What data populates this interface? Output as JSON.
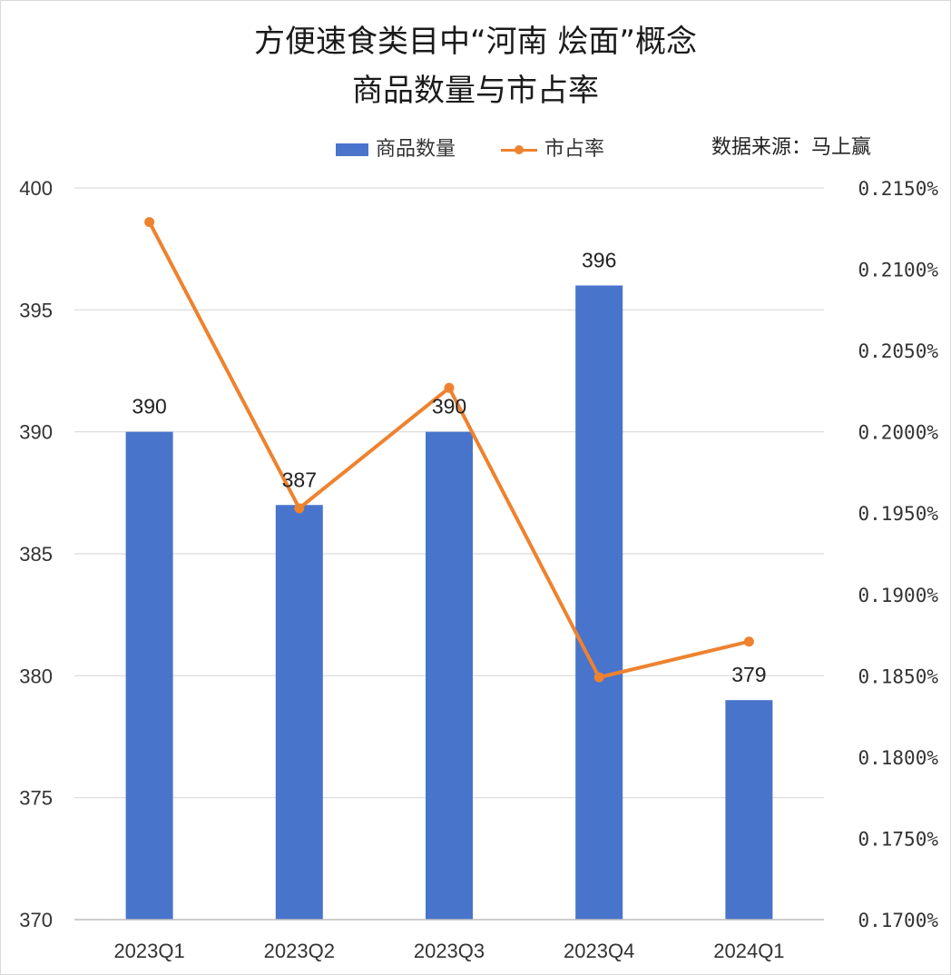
{
  "title_line1": "方便速食类目中“河南 烩面”概念",
  "title_line2": "商品数量与市占率",
  "source": "数据来源：马上赢",
  "legend": {
    "bar_label": "商品数量",
    "line_label": "市占率"
  },
  "colors": {
    "bar": "#4874cb",
    "line": "#ee822f",
    "grid": "#d9d9d9"
  },
  "chart_data": {
    "type": "bar",
    "categories": [
      "2023Q1",
      "2023Q2",
      "2023Q3",
      "2023Q4",
      "2024Q1"
    ],
    "series": [
      {
        "name": "商品数量",
        "type": "bar",
        "axis": "left",
        "values": [
          390,
          387,
          390,
          396,
          379
        ]
      },
      {
        "name": "市占率",
        "type": "line",
        "axis": "right",
        "values": [
          0.2129,
          0.1953,
          0.2027,
          0.1849,
          0.1871
        ]
      }
    ],
    "ylim_left": [
      370,
      400
    ],
    "yticks_left": [
      "370",
      "375",
      "380",
      "385",
      "390",
      "395",
      "400"
    ],
    "ylim_right": [
      0.17,
      0.215
    ],
    "yticks_right": [
      "0.1700%",
      "0.1750%",
      "0.1800%",
      "0.1850%",
      "0.1900%",
      "0.1950%",
      "0.2000%",
      "0.2050%",
      "0.2100%",
      "0.2150%"
    ],
    "data_labels": [
      "390",
      "387",
      "390",
      "396",
      "379"
    ],
    "grid": true,
    "legend_position": "top"
  }
}
